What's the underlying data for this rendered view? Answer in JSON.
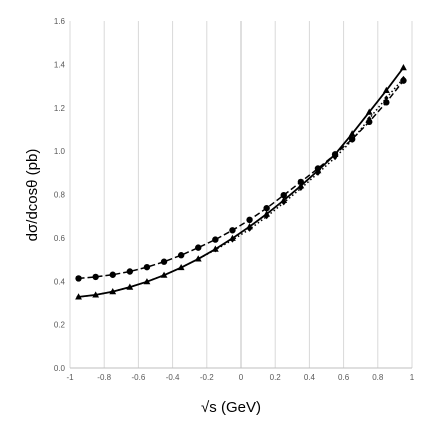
{
  "chart_data": {
    "type": "line",
    "xlabel": "√s (GeV)",
    "ylabel": "dσ/dcosθ (pb)",
    "xlim": [
      -1,
      1
    ],
    "ylim": [
      0,
      1.6
    ],
    "xticks": [
      "-1",
      "-0.8",
      "-0.6",
      "-0.4",
      "-0.2",
      "0",
      "0.2",
      "0.4",
      "0.6",
      "0.8",
      "1"
    ],
    "yticks": [
      "0.0",
      "0.2",
      "0.4",
      "0.6",
      "0.8",
      "1.0",
      "1.2",
      "1.4",
      "1.6"
    ],
    "grid": "vertical",
    "x": [
      -0.95,
      -0.85,
      -0.75,
      -0.65,
      -0.55,
      -0.45,
      -0.35,
      -0.25,
      -0.15,
      -0.05,
      0.05,
      0.15,
      0.25,
      0.35,
      0.45,
      0.55,
      0.65,
      0.75,
      0.85,
      0.95
    ],
    "series": [
      {
        "style": "dashed",
        "marker": "circle",
        "color": "#000000",
        "values": [
          0.413,
          0.42,
          0.43,
          0.445,
          0.465,
          0.49,
          0.52,
          0.555,
          0.592,
          0.635,
          0.683,
          0.737,
          0.797,
          0.858,
          0.92,
          0.985,
          1.055,
          1.135,
          1.225,
          1.325
        ]
      },
      {
        "style": "solid",
        "marker": "triangle",
        "color": "#000000",
        "values": [
          0.328,
          0.337,
          0.352,
          0.373,
          0.398,
          0.428,
          0.463,
          0.503,
          0.548,
          0.598,
          0.652,
          0.71,
          0.773,
          0.84,
          0.91,
          0.985,
          1.08,
          1.18,
          1.28,
          1.385
        ]
      },
      {
        "style": "dotted",
        "marker": "diamond",
        "color": "#000000",
        "values": [
          0.328,
          0.337,
          0.352,
          0.373,
          0.398,
          0.428,
          0.463,
          0.503,
          0.545,
          0.59,
          0.64,
          0.698,
          0.762,
          0.828,
          0.898,
          0.97,
          1.05,
          1.15,
          1.245,
          1.335
        ]
      }
    ]
  }
}
